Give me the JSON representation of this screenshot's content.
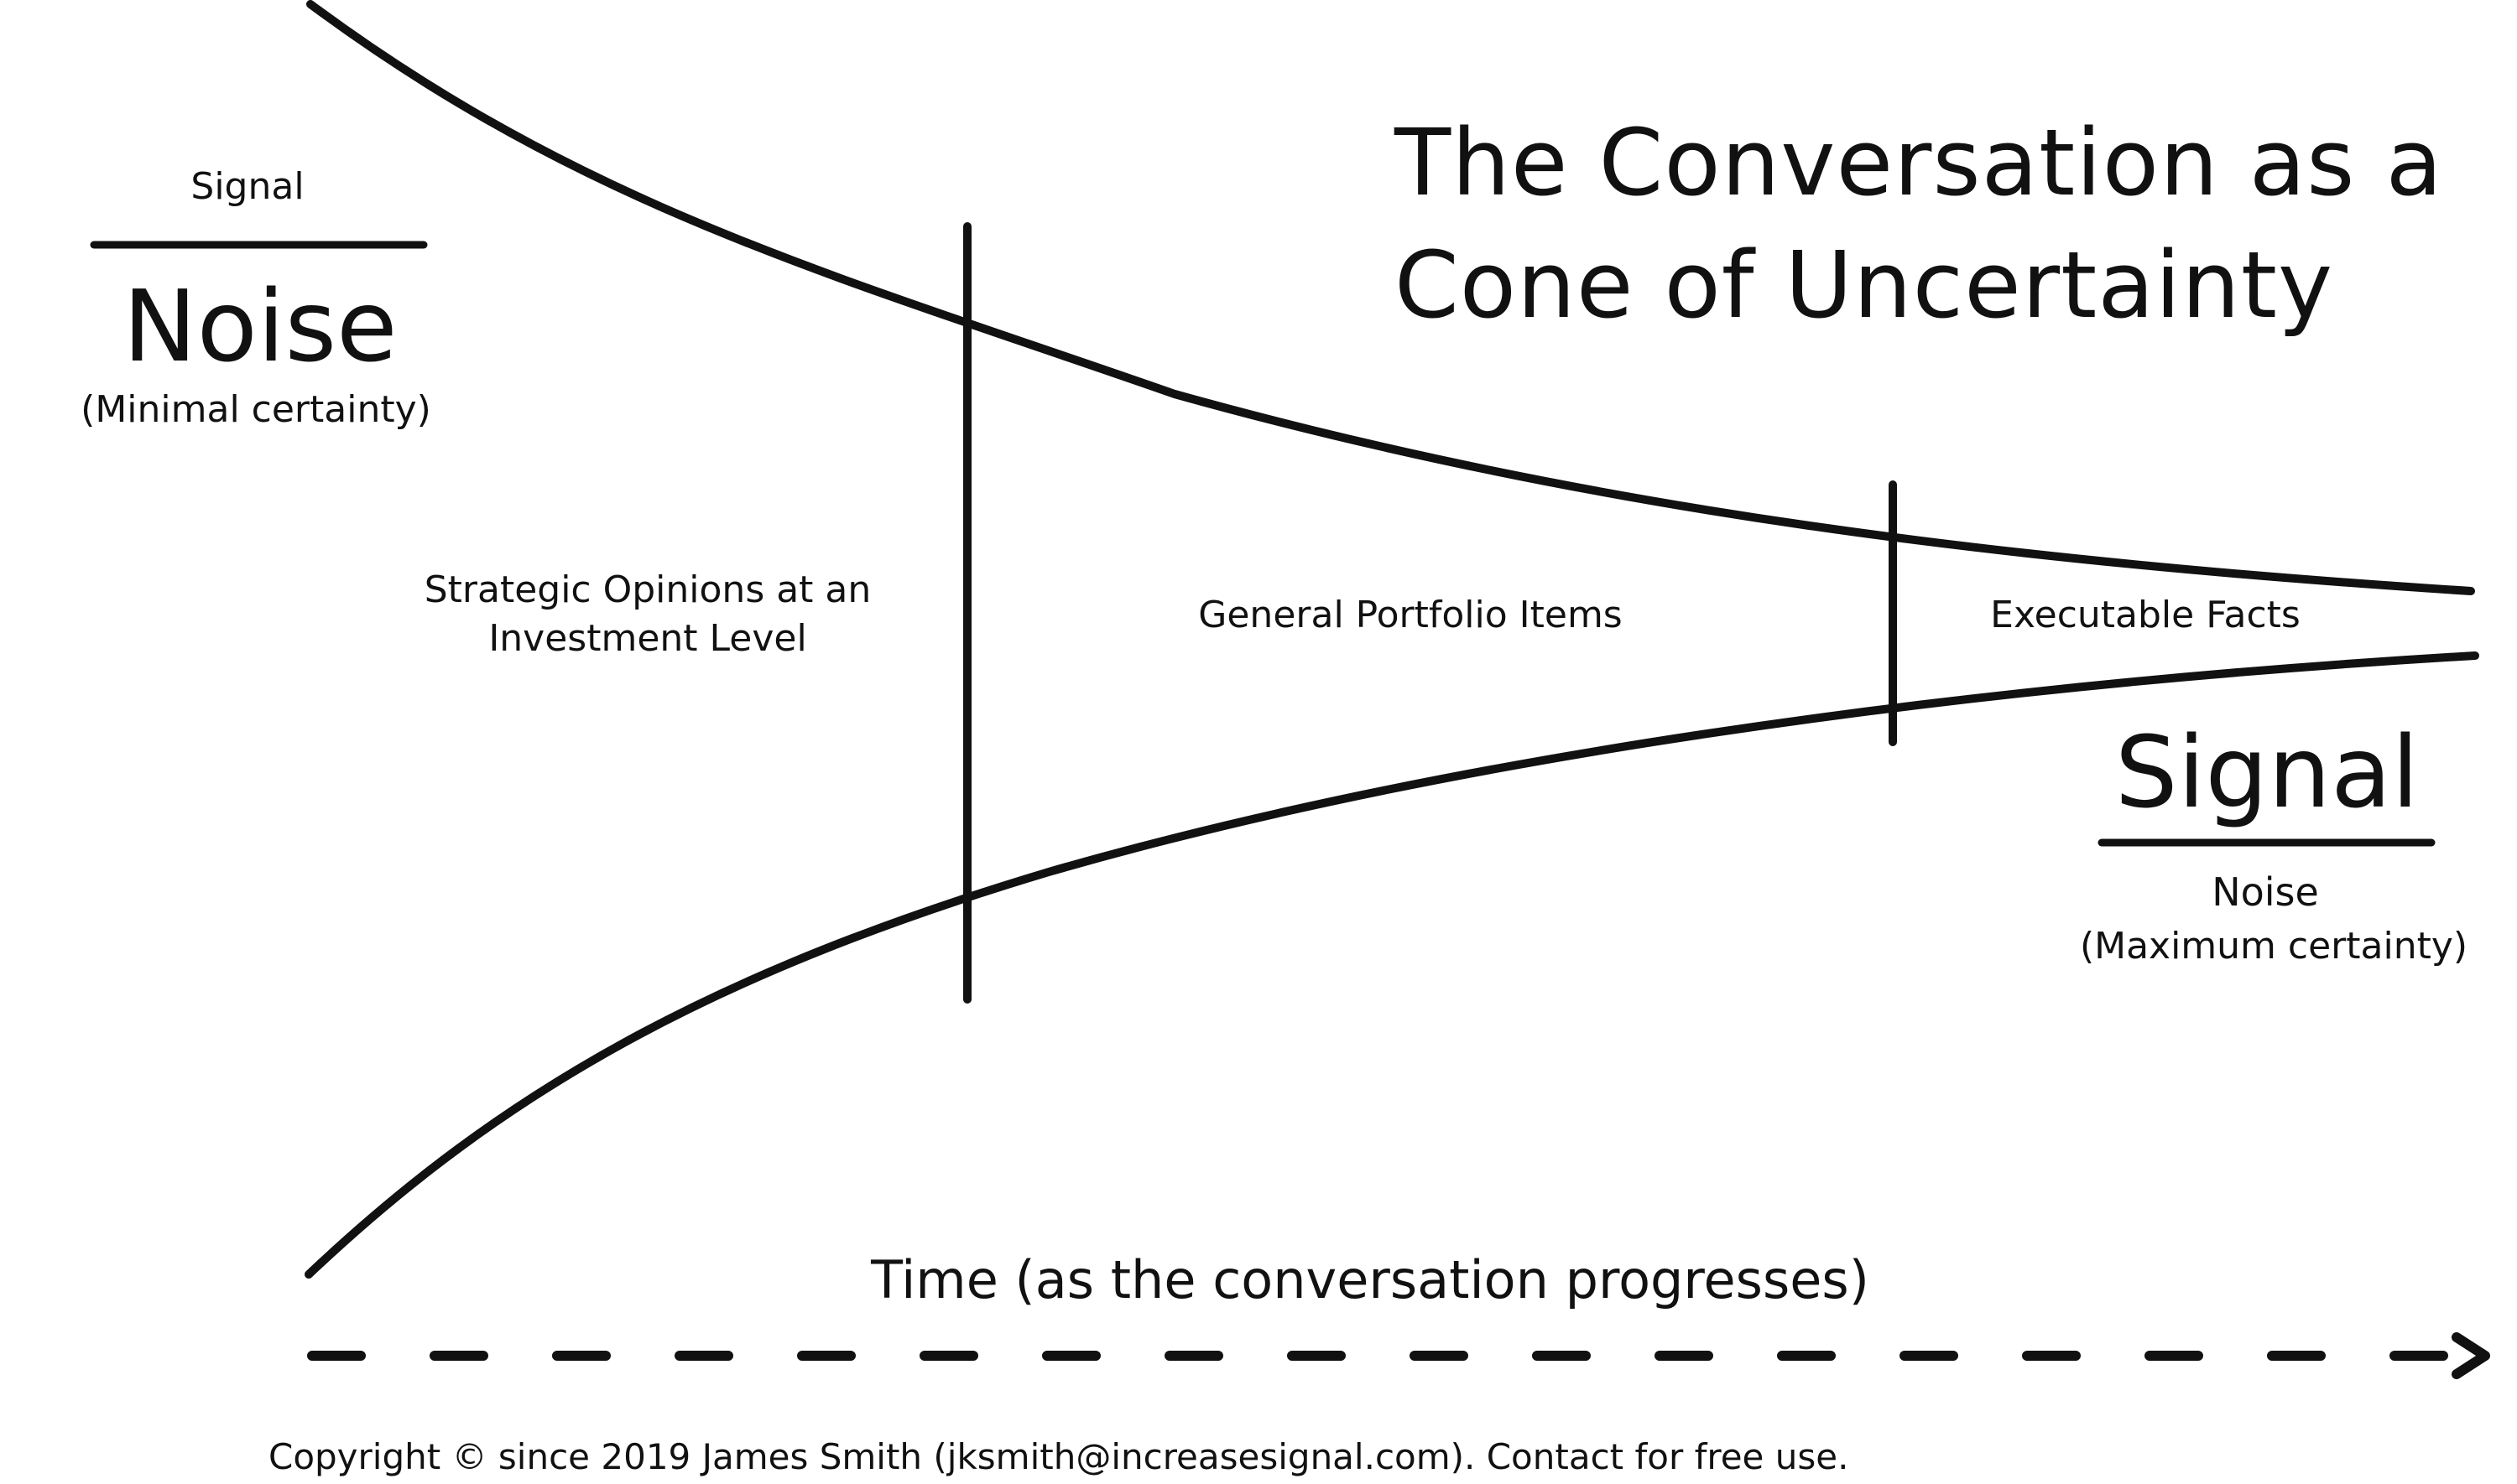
{
  "title": {
    "line1": "The Conversation as a",
    "line2": "Cone of Uncertainty"
  },
  "left_ratio": {
    "numerator": "Signal",
    "denominator": "Noise",
    "caption": "(Minimal certainty)"
  },
  "right_ratio": {
    "numerator": "Signal",
    "denominator": "Noise",
    "caption": "(Maximum certainty)"
  },
  "regions": {
    "strategic_line1": "Strategic Opinions at an",
    "strategic_line2": "Investment Level",
    "portfolio": "General Portfolio Items",
    "executable": "Executable Facts"
  },
  "time_axis": {
    "label": "Time (as the conversation progresses)"
  },
  "copyright": "Copyright © since 2019 James Smith (jksmith@increasesignal.com). Contact for free use.",
  "colors": {
    "ink": "#111111",
    "background": "#ffffff"
  }
}
